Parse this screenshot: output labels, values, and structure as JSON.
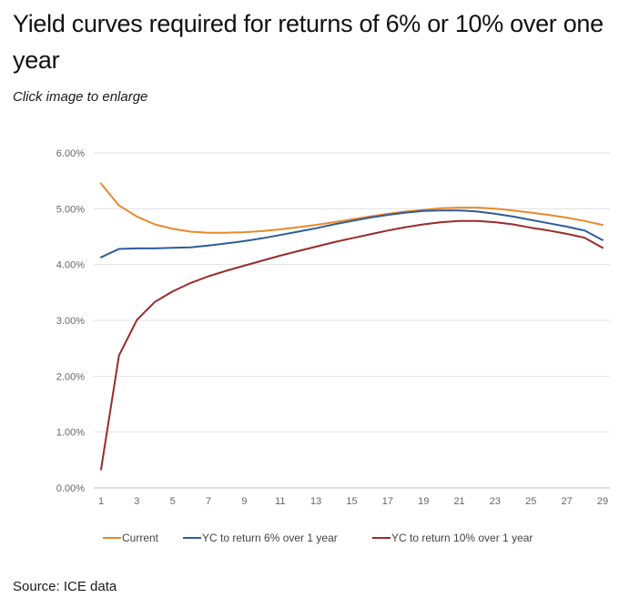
{
  "header": {
    "title": "Yield curves required for returns of 6% or 10% over one year",
    "caption": "Click image to enlarge"
  },
  "footer": {
    "source": "Source: ICE data"
  },
  "chart_data": {
    "type": "line",
    "title": "",
    "xlabel": "",
    "ylabel": "",
    "x": [
      1,
      2,
      3,
      4,
      5,
      6,
      7,
      8,
      9,
      10,
      11,
      12,
      13,
      14,
      15,
      16,
      17,
      18,
      19,
      20,
      21,
      22,
      23,
      24,
      25,
      26,
      27,
      28,
      29
    ],
    "xticks": [
      1,
      3,
      5,
      7,
      9,
      11,
      13,
      15,
      17,
      19,
      21,
      23,
      25,
      27,
      29
    ],
    "xlim": [
      1,
      29
    ],
    "ylim": [
      0,
      6
    ],
    "yticks": [
      0,
      1,
      2,
      3,
      4,
      5,
      6
    ],
    "ytick_labels": [
      "0.00%",
      "1.00%",
      "2.00%",
      "3.00%",
      "4.00%",
      "5.00%",
      "6.00%"
    ],
    "grid": true,
    "legend_position": "bottom",
    "series": [
      {
        "name": "Current",
        "color": "#E8892C",
        "values": [
          5.45,
          5.06,
          4.86,
          4.72,
          4.64,
          4.59,
          4.57,
          4.57,
          4.58,
          4.6,
          4.63,
          4.67,
          4.71,
          4.76,
          4.81,
          4.86,
          4.91,
          4.95,
          4.98,
          5.01,
          5.02,
          5.02,
          5.0,
          4.97,
          4.93,
          4.89,
          4.84,
          4.78,
          4.71
        ]
      },
      {
        "name": "YC to return 6% over 1 year",
        "color": "#2E5C9A",
        "values": [
          4.13,
          4.28,
          4.29,
          4.29,
          4.3,
          4.31,
          4.34,
          4.38,
          4.42,
          4.47,
          4.53,
          4.59,
          4.65,
          4.72,
          4.78,
          4.84,
          4.89,
          4.93,
          4.96,
          4.97,
          4.97,
          4.95,
          4.91,
          4.86,
          4.8,
          4.74,
          4.68,
          4.61,
          4.44
        ]
      },
      {
        "name": "YC to return 10% over 1 year",
        "color": "#9B2A2A",
        "values": [
          0.33,
          2.37,
          3.01,
          3.33,
          3.52,
          3.67,
          3.79,
          3.89,
          3.98,
          4.07,
          4.16,
          4.24,
          4.32,
          4.4,
          4.47,
          4.54,
          4.61,
          4.67,
          4.72,
          4.76,
          4.78,
          4.78,
          4.76,
          4.72,
          4.66,
          4.61,
          4.55,
          4.48,
          4.3
        ]
      }
    ]
  }
}
